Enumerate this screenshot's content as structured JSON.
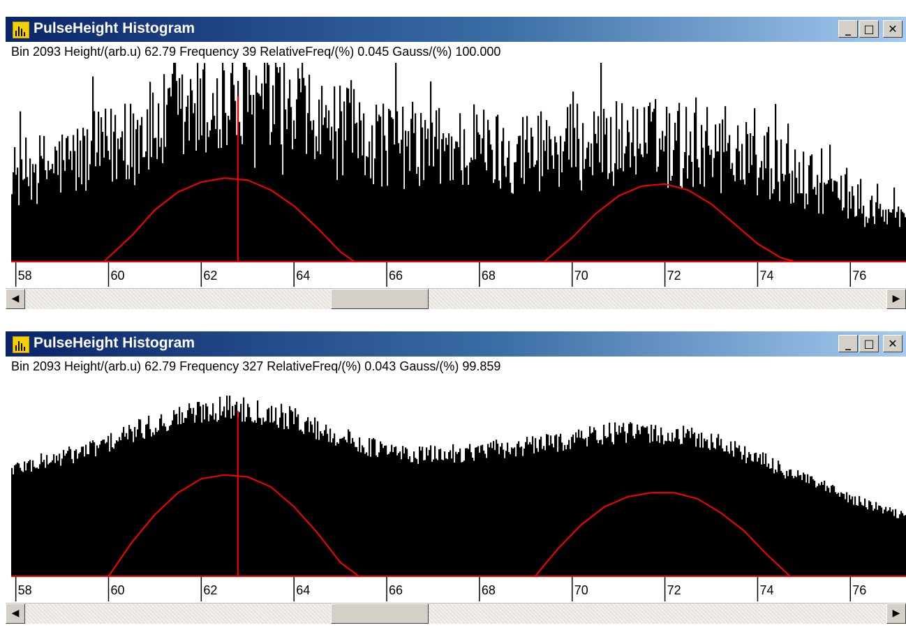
{
  "colors": {
    "histogram": "#000000",
    "fit_curve": "#ff0000",
    "cursor": "#ff0000",
    "title_bar_start": "#0a246a",
    "title_bar_end": "#a6caf0",
    "app_icon": "#f5d000"
  },
  "windows": [
    {
      "title": "PulseHeight Histogram",
      "icon": "histogram-app-icon",
      "buttons": {
        "minimize": "_",
        "maximize": "□",
        "close": "✕"
      },
      "status": {
        "text": "Bin 2093  Height/(arb.u) 62.79  Frequency 39  RelativeFreq/(%) 0.045  Gauss/(%) 100.000"
      },
      "scrollbar": {
        "left_arrow": "◀",
        "right_arrow": "▶",
        "position": 0.36
      },
      "chart_data": {
        "type": "bar",
        "title": "",
        "xlabel": "",
        "ylabel": "",
        "xlim": [
          57.9,
          77.2
        ],
        "x_ticks": [
          "58",
          "60",
          "62",
          "64",
          "66",
          "68",
          "70",
          "72",
          "74",
          "76"
        ],
        "cursor_x": 62.79,
        "series": [
          {
            "name": "",
            "style": "noisy",
            "x": [
              57.9,
              58.5,
              59.0,
              59.5,
              60.0,
              60.5,
              61.0,
              61.5,
              62.0,
              62.5,
              63.0,
              63.5,
              64.0,
              64.5,
              65.0,
              65.5,
              66.0,
              66.5,
              67.0,
              67.5,
              68.0,
              68.5,
              69.0,
              69.5,
              70.0,
              70.5,
              71.0,
              71.5,
              72.0,
              72.5,
              73.0,
              73.5,
              74.0,
              74.5,
              75.0,
              75.5,
              76.0,
              76.5,
              77.2
            ],
            "values": [
              48,
              52,
              55,
              58,
              63,
              68,
              74,
              79,
              83,
              85,
              84,
              81,
              78,
              74,
              71,
              69,
              67,
              65,
              64,
              63,
              63,
              62,
              62,
              63,
              64,
              65,
              66,
              66,
              66,
              65,
              63,
              60,
              56,
              50,
              45,
              40,
              34,
              28,
              24
            ]
          },
          {
            "name": "Gauss",
            "style": "line",
            "x": [
              57.9,
              59.9,
              60.5,
              61.0,
              61.5,
              62.0,
              62.5,
              63.0,
              63.5,
              64.0,
              64.5,
              65.0,
              65.3,
              69.4,
              70.0,
              70.5,
              71.0,
              71.5,
              72.0,
              72.5,
              73.0,
              73.5,
              74.0,
              74.5,
              74.8,
              77.2
            ],
            "values": [
              0,
              0,
              13,
              26,
              35,
              40,
              42,
              41,
              36,
              28,
              17,
              5,
              0,
              0,
              12,
              24,
              33,
              38,
              39,
              36,
              29,
              19,
              9,
              2,
              0,
              0
            ]
          }
        ]
      }
    },
    {
      "title": "PulseHeight Histogram",
      "icon": "histogram-app-icon",
      "buttons": {
        "minimize": "_",
        "maximize": "□",
        "close": "✕"
      },
      "status": {
        "text": "Bin 2093  Height/(arb.u) 62.79  Frequency 327  RelativeFreq/(%) 0.043  Gauss/(%) 99.859"
      },
      "scrollbar": {
        "left_arrow": "◀",
        "right_arrow": "▶",
        "position": 0.36
      },
      "chart_data": {
        "type": "bar",
        "title": "",
        "xlabel": "",
        "ylabel": "",
        "xlim": [
          57.9,
          77.2
        ],
        "x_ticks": [
          "58",
          "60",
          "62",
          "64",
          "66",
          "68",
          "70",
          "72",
          "74",
          "76"
        ],
        "cursor_x": 62.79,
        "series": [
          {
            "name": "",
            "style": "smooth",
            "x": [
              57.9,
              58.5,
              59.0,
              59.5,
              60.0,
              60.5,
              61.0,
              61.5,
              62.0,
              62.5,
              63.0,
              63.5,
              64.0,
              64.5,
              65.0,
              65.5,
              66.0,
              66.5,
              67.0,
              67.5,
              68.0,
              68.5,
              69.0,
              69.5,
              70.0,
              70.5,
              71.0,
              71.5,
              72.0,
              72.5,
              73.0,
              73.5,
              74.0,
              74.5,
              75.0,
              75.5,
              76.0,
              76.5,
              77.2
            ],
            "values": [
              54,
              57,
              60,
              63,
              67,
              72,
              76,
              80,
              83,
              85,
              84,
              82,
              79,
              74,
              70,
              66,
              63,
              61,
              61,
              62,
              63,
              64,
              65,
              67,
              69,
              71,
              72,
              72,
              71,
              70,
              68,
              64,
              59,
              54,
              49,
              44,
              39,
              35,
              30
            ]
          },
          {
            "name": "Gauss",
            "style": "line",
            "x": [
              57.9,
              60.0,
              60.5,
              61.0,
              61.5,
              62.0,
              62.5,
              63.0,
              63.5,
              64.0,
              64.5,
              65.0,
              65.4,
              69.2,
              69.7,
              70.2,
              70.7,
              71.2,
              71.7,
              72.2,
              72.7,
              73.2,
              73.7,
              74.2,
              74.7,
              77.2
            ],
            "values": [
              0,
              0,
              17,
              31,
              42,
              49,
              51,
              50,
              45,
              35,
              22,
              7,
              0,
              0,
              14,
              26,
              35,
              40,
              42,
              42,
              39,
              32,
              23,
              11,
              0,
              0
            ]
          }
        ]
      }
    }
  ]
}
